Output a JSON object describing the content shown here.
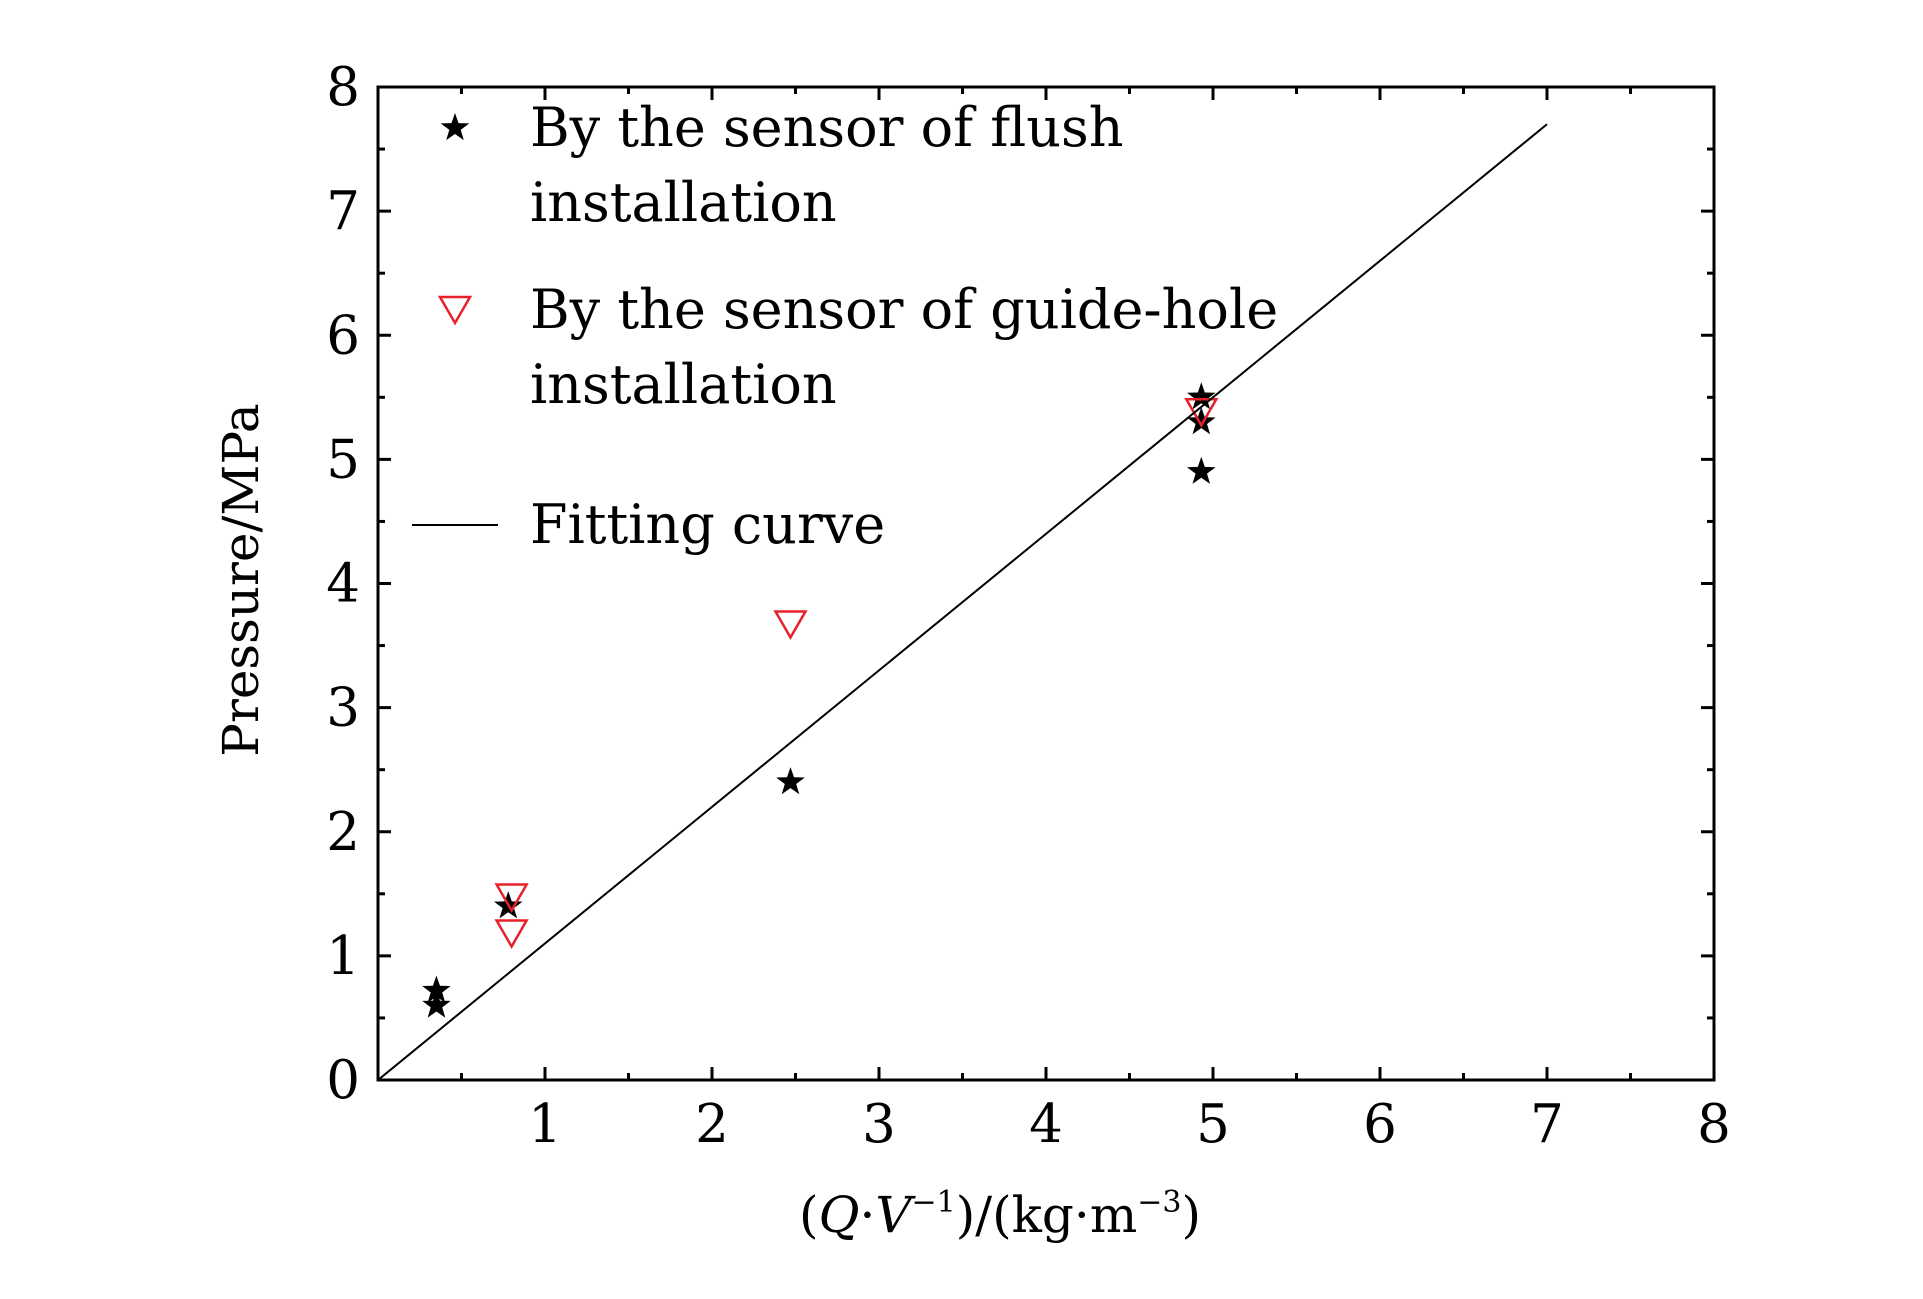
{
  "chart_data": {
    "type": "scatter",
    "xlabel": {
      "open": "(",
      "q": "Q",
      "dot": "·",
      "v": "V",
      "v_exp": "−1",
      "mid": ")/(kg",
      "dot2": "·",
      "m": "m",
      "m_exp": "−3",
      "close": ")"
    },
    "ylabel": "Pressure/MPa",
    "xlim": [
      0,
      8
    ],
    "ylim": [
      0,
      8
    ],
    "xticks": [
      "1",
      "2",
      "3",
      "4",
      "5",
      "6",
      "7",
      "8"
    ],
    "yticks": [
      "0",
      "1",
      "2",
      "3",
      "4",
      "5",
      "6",
      "7",
      "8"
    ],
    "grid": false,
    "legend_position": "top-left",
    "series": [
      {
        "legend_lines": [
          "By the sensor of flush",
          "installation"
        ],
        "marker": "star",
        "color": "#000000",
        "points": [
          {
            "x": 0.35,
            "y": 0.72
          },
          {
            "x": 0.35,
            "y": 0.6
          },
          {
            "x": 0.78,
            "y": 1.4
          },
          {
            "x": 2.47,
            "y": 2.4
          },
          {
            "x": 4.93,
            "y": 5.5
          },
          {
            "x": 4.93,
            "y": 5.3
          },
          {
            "x": 4.93,
            "y": 4.9
          }
        ]
      },
      {
        "legend_lines": [
          "By the sensor of guide-hole",
          "installation"
        ],
        "marker": "triangle-down-open",
        "color": "#e8202a",
        "points": [
          {
            "x": 0.8,
            "y": 1.47
          },
          {
            "x": 0.8,
            "y": 1.18
          },
          {
            "x": 2.47,
            "y": 3.67
          },
          {
            "x": 4.93,
            "y": 5.38
          }
        ]
      },
      {
        "legend_lines": [
          "Fitting curve"
        ],
        "marker": "line",
        "color": "#000000",
        "points": [
          {
            "x": 0,
            "y": 0
          },
          {
            "x": 7,
            "y": 7.7
          }
        ]
      }
    ]
  }
}
